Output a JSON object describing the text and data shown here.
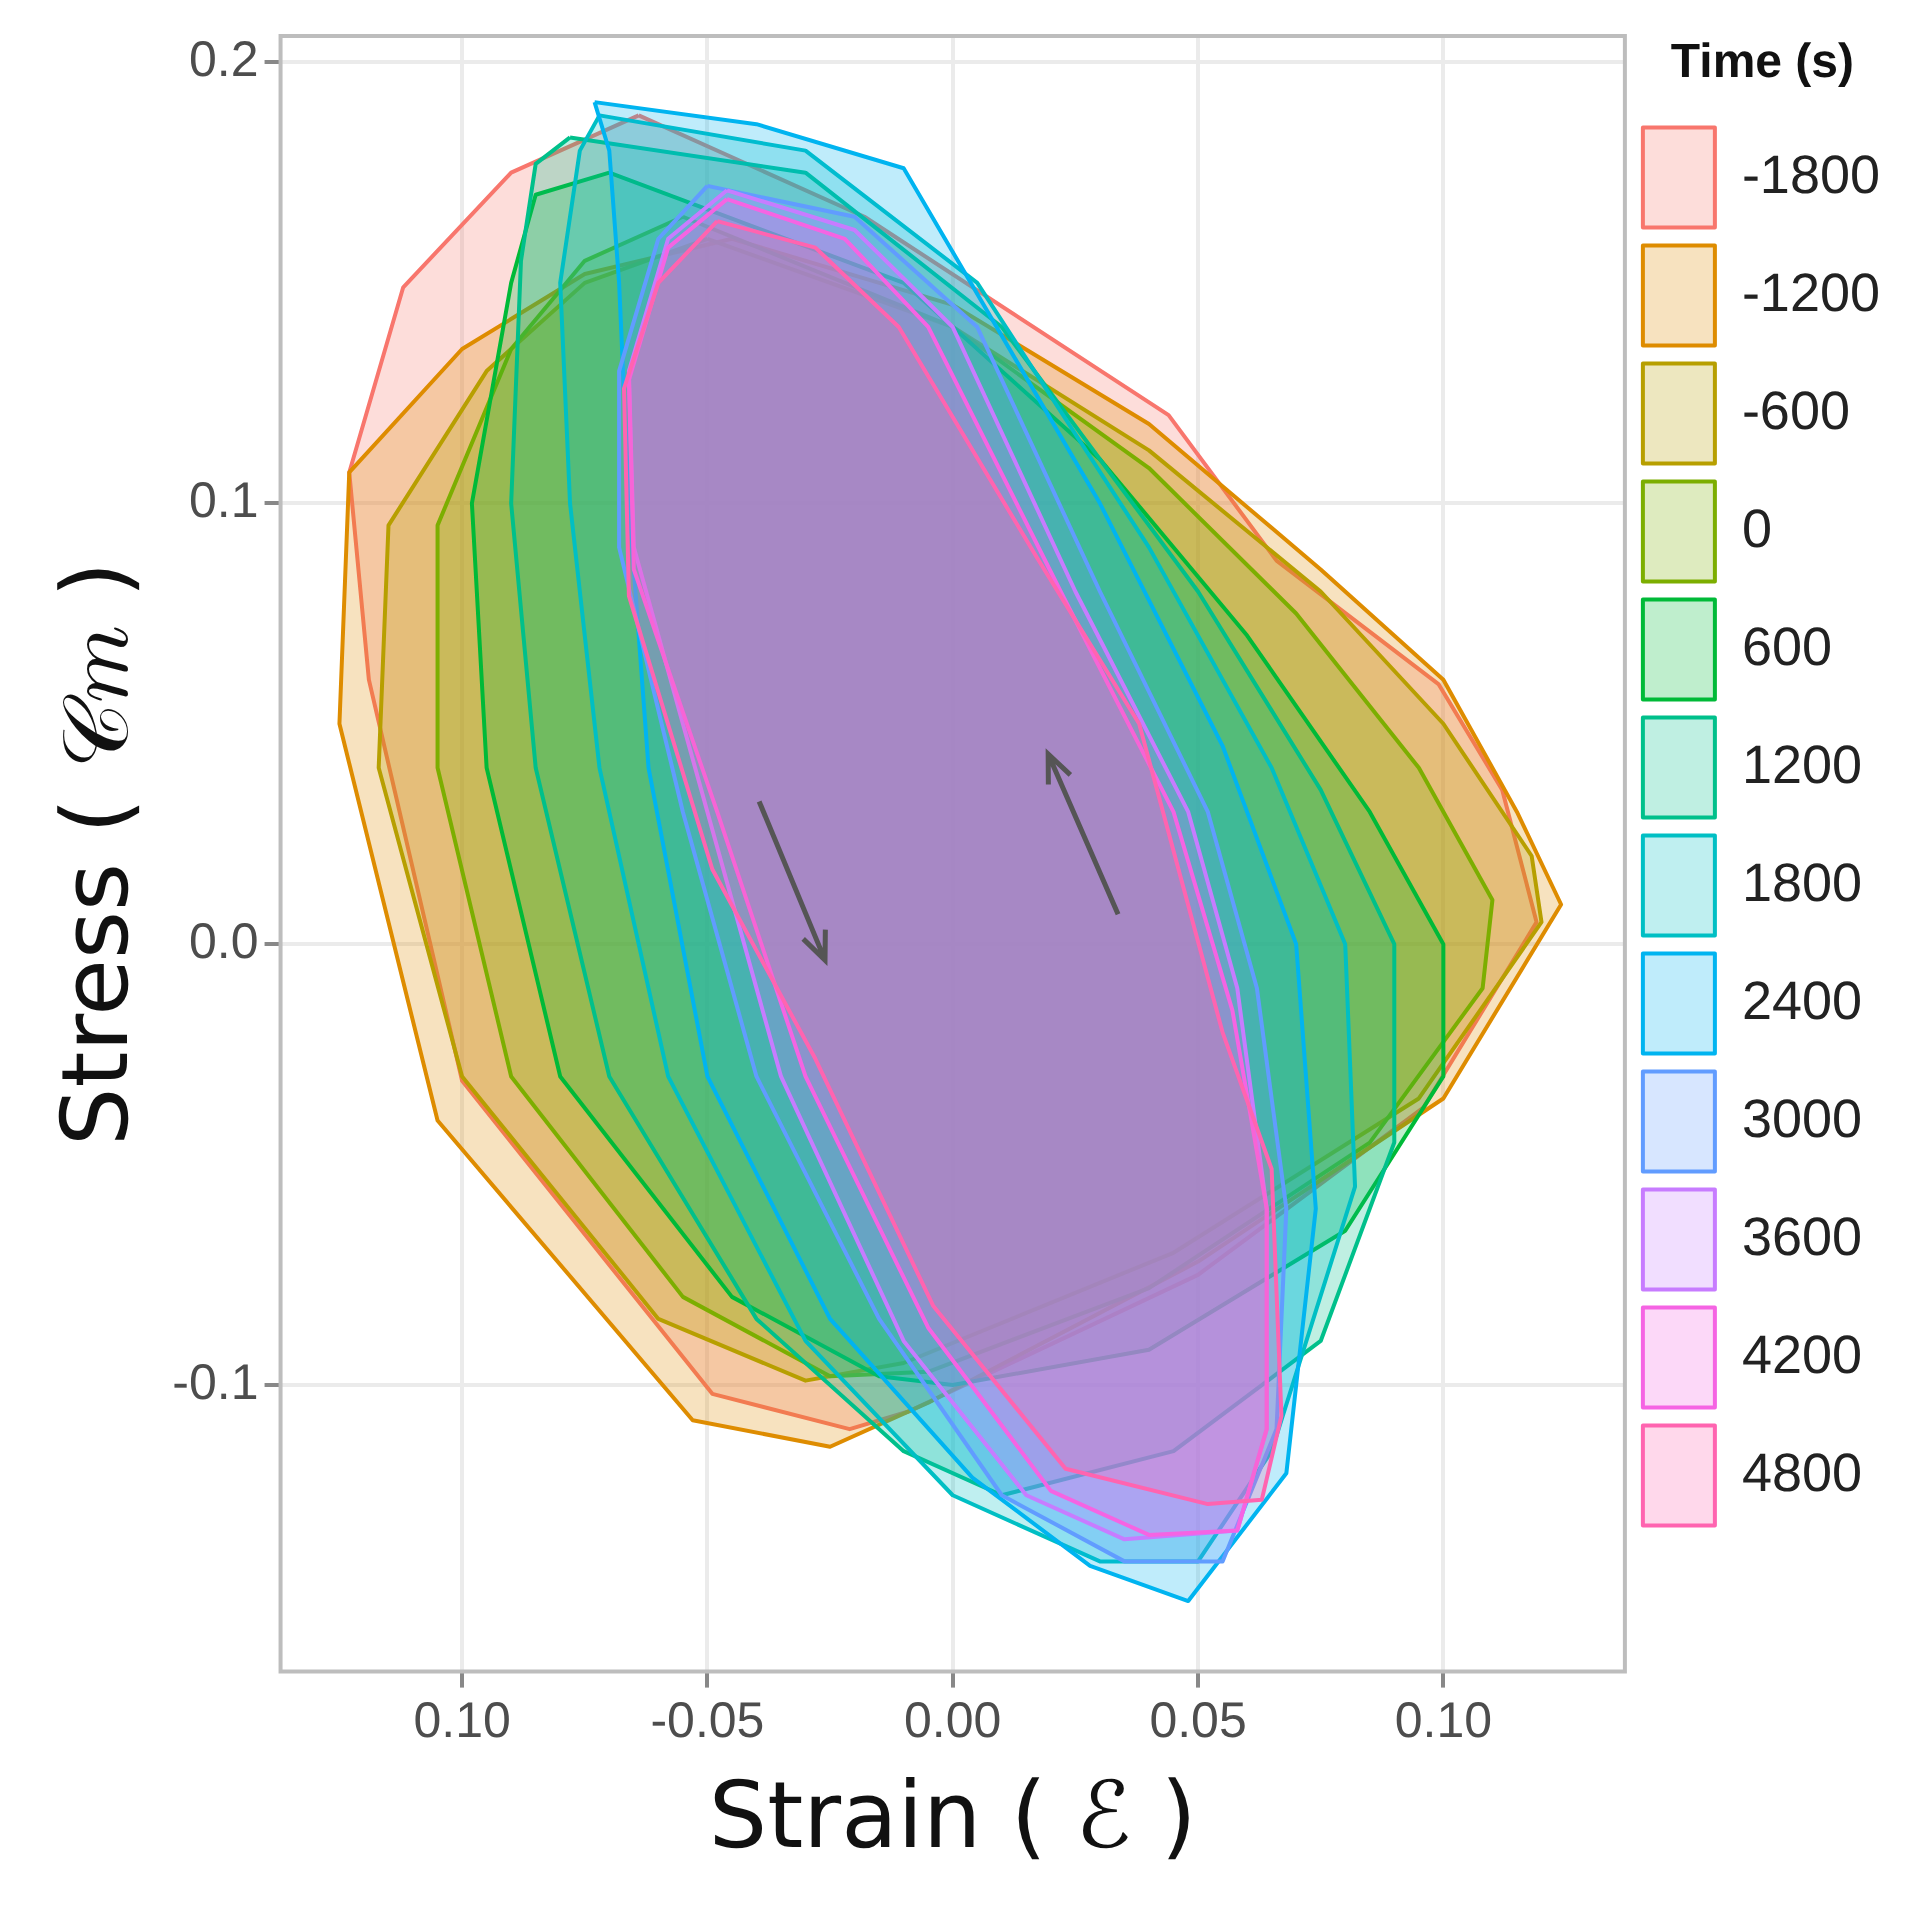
{
  "chart_data": {
    "type": "area",
    "xlabel": "Strain ( ℰ )",
    "ylabel": "Stress ( 𝒞𝑚 )",
    "legend_title": "Time (s)",
    "legend": "right",
    "grid": true,
    "marker": "none",
    "xlim": [
      -0.137,
      0.137
    ],
    "ylim": [
      -0.165,
      0.206
    ],
    "xticks": [
      {
        "value": -0.1,
        "label": "0.10"
      },
      {
        "value": -0.05,
        "label": "-0.05"
      },
      {
        "value": 0,
        "label": "0.00"
      },
      {
        "value": 0.05,
        "label": "0.05"
      },
      {
        "value": 0.1,
        "label": "0.10"
      }
    ],
    "yticks": [
      {
        "value": -0.1,
        "label": "-0.1"
      },
      {
        "value": 0,
        "label": "0.0"
      },
      {
        "value": 0.1,
        "label": "0.1"
      },
      {
        "value": 0.2,
        "label": "0.2"
      }
    ],
    "series": [
      {
        "name": "-1800",
        "color": "#f8766d",
        "x": [
          -0.064,
          -0.018,
          0.044,
          0.066,
          0.099,
          0.112,
          0.119,
          0.096,
          0.05,
          -0.009,
          -0.021,
          -0.049,
          -0.1,
          -0.119,
          -0.123,
          -0.112,
          -0.09,
          -0.064
        ],
        "values": [
          0.188,
          0.165,
          0.12,
          0.087,
          0.059,
          0.035,
          0.005,
          -0.037,
          -0.075,
          -0.106,
          -0.11,
          -0.102,
          -0.031,
          0.06,
          0.107,
          0.149,
          0.175,
          0.188
        ]
      },
      {
        "name": "-1200",
        "color": "#de8c00",
        "x": [
          -0.045,
          0.0,
          0.04,
          0.075,
          0.1,
          0.115,
          0.124,
          0.1,
          0.05,
          -0.005,
          -0.025,
          -0.053,
          -0.105,
          -0.125,
          -0.123,
          -0.1,
          -0.075,
          -0.045
        ],
        "values": [
          0.16,
          0.145,
          0.118,
          0.085,
          0.06,
          0.03,
          0.009,
          -0.035,
          -0.072,
          -0.104,
          -0.114,
          -0.108,
          -0.04,
          0.05,
          0.107,
          0.135,
          0.152,
          0.16
        ]
      },
      {
        "name": "-600",
        "color": "#b79f00",
        "x": [
          -0.05,
          0.0,
          0.04,
          0.075,
          0.1,
          0.118,
          0.12,
          0.095,
          0.045,
          -0.01,
          -0.03,
          -0.06,
          -0.1,
          -0.117,
          -0.115,
          -0.095,
          -0.075,
          -0.05
        ],
        "values": [
          0.16,
          0.14,
          0.112,
          0.08,
          0.05,
          0.02,
          0.005,
          -0.035,
          -0.07,
          -0.095,
          -0.099,
          -0.085,
          -0.03,
          0.04,
          0.095,
          0.13,
          0.15,
          0.16
        ]
      },
      {
        "name": "0",
        "color": "#7cae00",
        "x": [
          -0.055,
          0.0,
          0.04,
          0.07,
          0.095,
          0.11,
          0.108,
          0.085,
          0.04,
          -0.005,
          -0.025,
          -0.055,
          -0.09,
          -0.105,
          -0.105,
          -0.09,
          -0.075,
          -0.055
        ],
        "values": [
          0.165,
          0.14,
          0.108,
          0.075,
          0.04,
          0.01,
          -0.01,
          -0.045,
          -0.078,
          -0.097,
          -0.098,
          -0.08,
          -0.03,
          0.04,
          0.095,
          0.135,
          0.155,
          0.165
        ]
      },
      {
        "name": "600",
        "color": "#00ba38",
        "x": [
          -0.07,
          -0.01,
          0.03,
          0.06,
          0.085,
          0.1,
          0.1,
          0.08,
          0.04,
          0.0,
          -0.015,
          -0.045,
          -0.08,
          -0.095,
          -0.098,
          -0.09,
          -0.085,
          -0.07
        ],
        "values": [
          0.175,
          0.15,
          0.11,
          0.07,
          0.03,
          0.0,
          -0.03,
          -0.065,
          -0.092,
          -0.1,
          -0.098,
          -0.08,
          -0.03,
          0.04,
          0.1,
          0.15,
          0.17,
          0.175
        ]
      },
      {
        "name": "1200",
        "color": "#00c08b",
        "x": [
          -0.078,
          -0.03,
          0.01,
          0.05,
          0.075,
          0.09,
          0.09,
          0.075,
          0.045,
          0.01,
          -0.01,
          -0.04,
          -0.07,
          -0.085,
          -0.09,
          -0.088,
          -0.085,
          -0.078
        ],
        "values": [
          0.183,
          0.175,
          0.14,
          0.08,
          0.035,
          0.0,
          -0.045,
          -0.09,
          -0.115,
          -0.125,
          -0.115,
          -0.085,
          -0.03,
          0.04,
          0.1,
          0.155,
          0.177,
          0.183
        ]
      },
      {
        "name": "1800",
        "color": "#00bfc4",
        "x": [
          -0.072,
          -0.03,
          0.005,
          0.04,
          0.065,
          0.08,
          0.082,
          0.065,
          0.05,
          0.03,
          0.0,
          -0.03,
          -0.058,
          -0.072,
          -0.078,
          -0.08,
          -0.076,
          -0.072
        ],
        "values": [
          0.188,
          0.18,
          0.15,
          0.09,
          0.04,
          0.0,
          -0.055,
          -0.115,
          -0.14,
          -0.14,
          -0.125,
          -0.09,
          -0.03,
          0.04,
          0.1,
          0.15,
          0.18,
          0.188
        ]
      },
      {
        "name": "2400",
        "color": "#00b4f0",
        "x": [
          -0.073,
          -0.04,
          -0.01,
          0.03,
          0.055,
          0.07,
          0.074,
          0.068,
          0.048,
          0.028,
          0.004,
          -0.025,
          -0.05,
          -0.062,
          -0.066,
          -0.068,
          -0.07,
          -0.073
        ],
        "values": [
          0.191,
          0.186,
          0.176,
          0.1,
          0.045,
          0.0,
          -0.06,
          -0.12,
          -0.149,
          -0.141,
          -0.121,
          -0.085,
          -0.03,
          0.04,
          0.1,
          0.15,
          0.18,
          0.191
        ]
      },
      {
        "name": "3000",
        "color": "#619cff",
        "x": [
          -0.05,
          -0.02,
          0.005,
          0.03,
          0.052,
          0.062,
          0.068,
          0.066,
          0.055,
          0.035,
          0.01,
          -0.015,
          -0.04,
          -0.055,
          -0.068,
          -0.068,
          -0.06,
          -0.05
        ],
        "values": [
          0.172,
          0.165,
          0.14,
          0.08,
          0.03,
          -0.01,
          -0.06,
          -0.11,
          -0.14,
          -0.14,
          -0.125,
          -0.085,
          -0.03,
          0.03,
          0.09,
          0.13,
          0.16,
          0.172
        ]
      },
      {
        "name": "3600",
        "color": "#c77cff",
        "x": [
          -0.046,
          -0.02,
          0.0,
          0.025,
          0.048,
          0.058,
          0.064,
          0.064,
          0.058,
          0.035,
          0.015,
          -0.01,
          -0.035,
          -0.05,
          -0.065,
          -0.066,
          -0.058,
          -0.046
        ],
        "values": [
          0.171,
          0.162,
          0.14,
          0.08,
          0.03,
          -0.01,
          -0.06,
          -0.11,
          -0.133,
          -0.135,
          -0.125,
          -0.09,
          -0.03,
          0.03,
          0.09,
          0.13,
          0.16,
          0.171
        ]
      },
      {
        "name": "4200",
        "color": "#f564e3",
        "x": [
          -0.046,
          -0.022,
          -0.005,
          0.022,
          0.045,
          0.057,
          0.064,
          0.064,
          0.058,
          0.04,
          0.02,
          -0.005,
          -0.03,
          -0.048,
          -0.065,
          -0.066,
          -0.058,
          -0.046
        ],
        "values": [
          0.169,
          0.16,
          0.14,
          0.08,
          0.03,
          -0.015,
          -0.06,
          -0.11,
          -0.133,
          -0.134,
          -0.124,
          -0.087,
          -0.03,
          0.03,
          0.085,
          0.128,
          0.158,
          0.169
        ]
      },
      {
        "name": "4800",
        "color": "#ff64b0",
        "x": [
          -0.048,
          -0.028,
          -0.011,
          0.017,
          0.038,
          0.055,
          0.065,
          0.067,
          0.063,
          0.052,
          0.023,
          -0.004,
          -0.028,
          -0.049,
          -0.066,
          -0.067,
          -0.06,
          -0.048
        ],
        "values": [
          0.164,
          0.158,
          0.14,
          0.088,
          0.05,
          -0.02,
          -0.051,
          -0.107,
          -0.126,
          -0.127,
          -0.119,
          -0.082,
          -0.026,
          0.017,
          0.079,
          0.126,
          0.15,
          0.164
        ]
      }
    ]
  }
}
